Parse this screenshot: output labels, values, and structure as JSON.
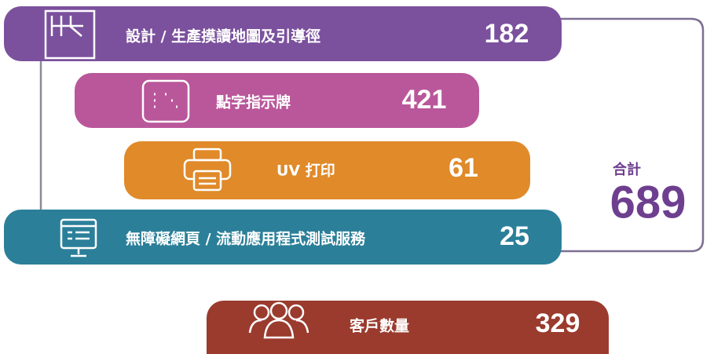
{
  "items": [
    {
      "label": "設計 / 生產摸讀地圖及引導徑",
      "value": 182
    },
    {
      "label": "點字指示牌",
      "value": 421
    },
    {
      "label": "UV 打印",
      "value": 61
    },
    {
      "label": "無障礙網頁 / 流動應用程式測試服務",
      "value": 25
    }
  ],
  "total": {
    "label": "合計",
    "value": 689
  },
  "customers": {
    "label": "客戶數量",
    "value": 329
  }
}
